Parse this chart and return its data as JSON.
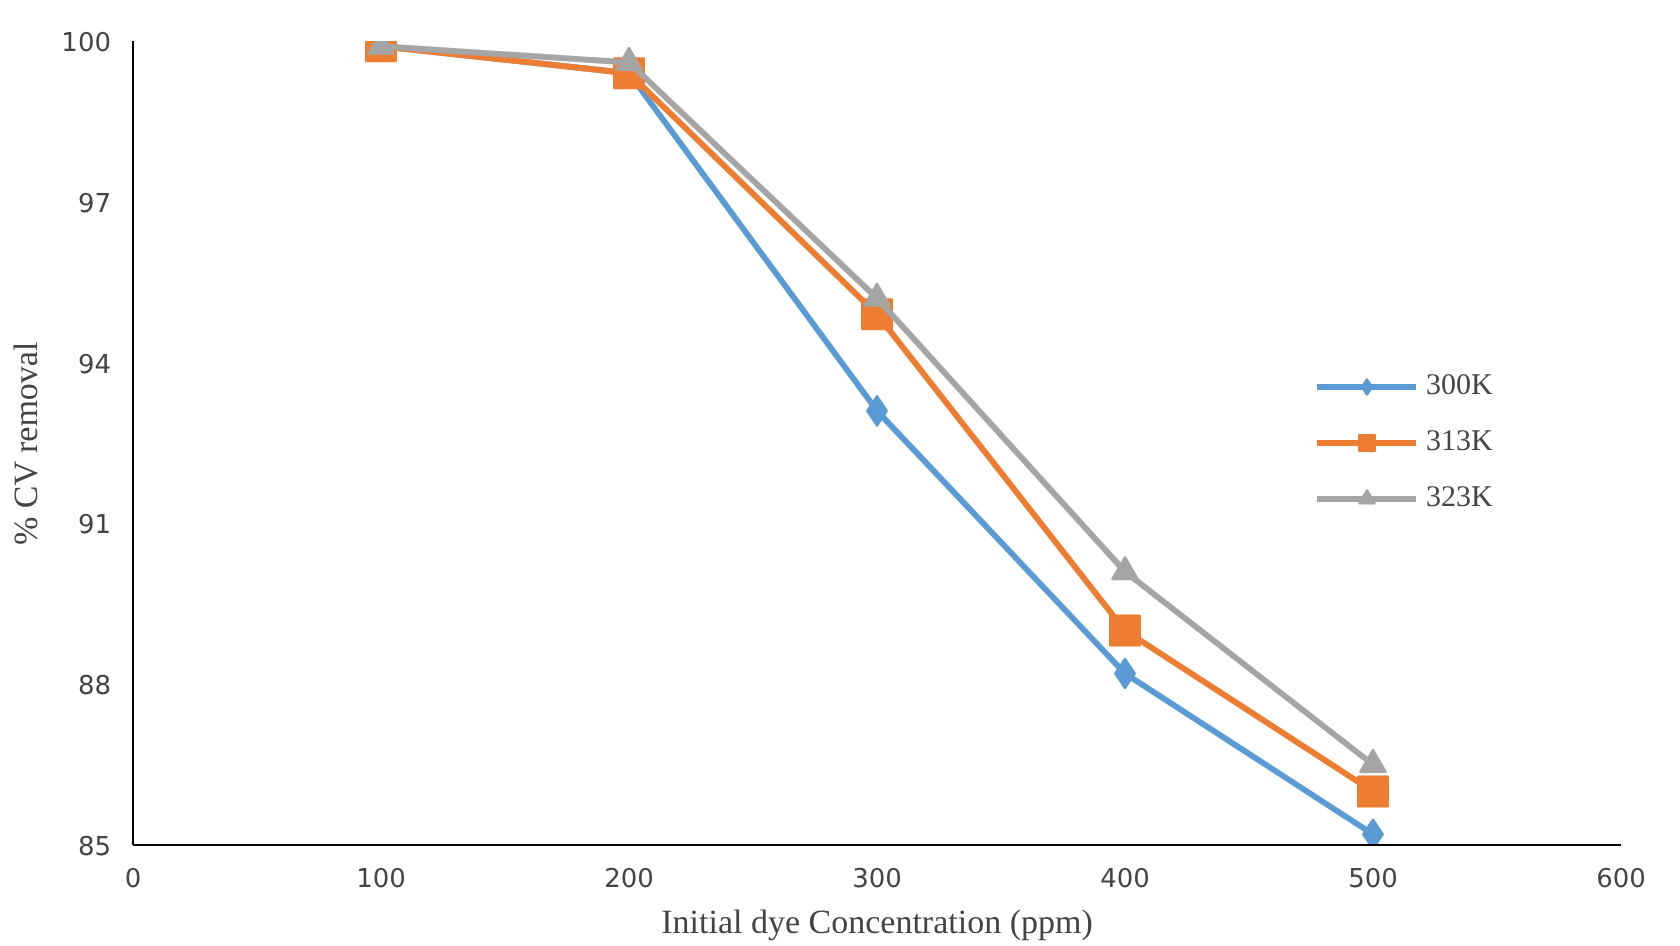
{
  "chart_data": {
    "type": "line",
    "xlabel": "Initial dye Concentration (ppm)",
    "ylabel": "% CV removal",
    "x": [
      100,
      200,
      300,
      400,
      500
    ],
    "series": [
      {
        "name": "300K",
        "color": "#5b9bd5",
        "marker": "diamond",
        "values": [
          99.9,
          99.4,
          93.1,
          88.2,
          85.2
        ]
      },
      {
        "name": "313K",
        "color": "#ed7d31",
        "marker": "square",
        "values": [
          99.9,
          99.4,
          94.9,
          89.0,
          86.0
        ]
      },
      {
        "name": "323K",
        "color": "#a5a5a5",
        "marker": "triangle",
        "values": [
          99.9,
          99.6,
          95.2,
          90.1,
          86.5
        ]
      }
    ],
    "xlim": [
      0,
      600
    ],
    "xticks": [
      0,
      100,
      200,
      300,
      400,
      500,
      600
    ],
    "ylim": [
      85,
      100
    ],
    "yticks": [
      85,
      88,
      91,
      94,
      97,
      100
    ],
    "grid": false,
    "legend": "right",
    "line_style": "solid"
  }
}
